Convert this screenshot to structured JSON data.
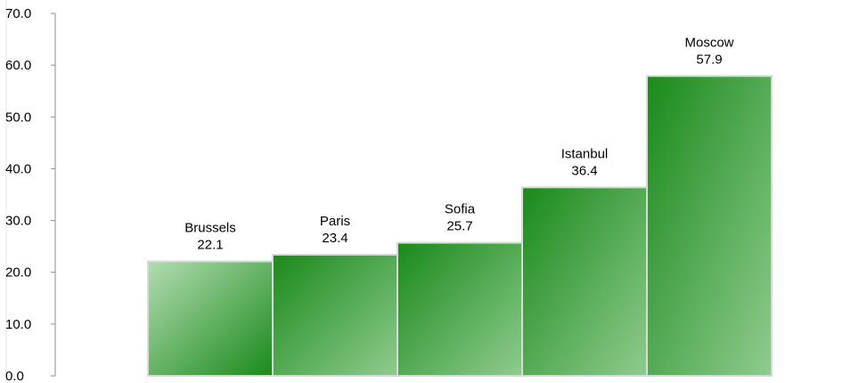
{
  "chart_data": {
    "type": "bar",
    "title": "",
    "xlabel": "",
    "ylabel": "",
    "categories": [
      "Brussels",
      "Paris",
      "Sofia",
      "Istanbul",
      "Moscow"
    ],
    "values": [
      22.1,
      23.4,
      25.7,
      36.4,
      57.9
    ],
    "value_labels": [
      "22.1",
      "23.4",
      "25.7",
      "36.4",
      "57.9"
    ],
    "ylim": [
      0,
      70
    ],
    "yticks": [
      0,
      10,
      20,
      30,
      40,
      50,
      60,
      70
    ],
    "ytick_labels": [
      "0.0",
      "10.0",
      "20.0",
      "30.0",
      "40.0",
      "50.0",
      "60.0",
      "70.0"
    ],
    "grid": false,
    "legend": "none",
    "colors": {
      "bar_dark": "#1a8a1a",
      "bar_light": "#8fcb8f",
      "bar_first_light": "#b2dcb2",
      "bar_border": "#d9d9d9",
      "axis": "#8c8c8c"
    }
  }
}
